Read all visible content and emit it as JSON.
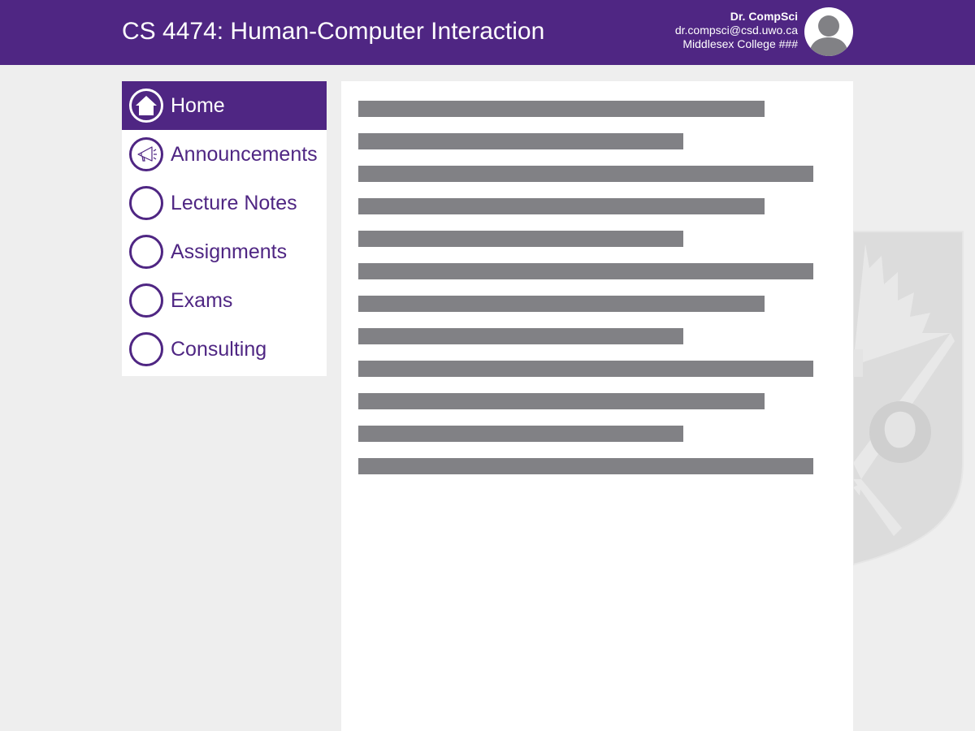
{
  "header": {
    "course_title": "CS 4474: Human-Computer Interaction",
    "prof_name": "Dr. CompSci",
    "prof_email": "dr.compsci@csd.uwo.ca",
    "prof_office": "Middlesex College ###"
  },
  "sidebar": {
    "items": [
      {
        "label": "Home",
        "icon": "home-icon",
        "active": true
      },
      {
        "label": "Announcements",
        "icon": "megaphone-icon",
        "active": false
      },
      {
        "label": "Lecture Notes",
        "icon": "circle-icon",
        "active": false
      },
      {
        "label": "Assignments",
        "icon": "circle-icon",
        "active": false
      },
      {
        "label": "Exams",
        "icon": "circle-icon",
        "active": false
      },
      {
        "label": "Consulting",
        "icon": "circle-icon",
        "active": false
      }
    ]
  },
  "content": {
    "placeholder_lines": 12
  },
  "colors": {
    "brand_purple": "#4f2683",
    "background": "#eeeeee",
    "placeholder_gray": "#818185"
  }
}
